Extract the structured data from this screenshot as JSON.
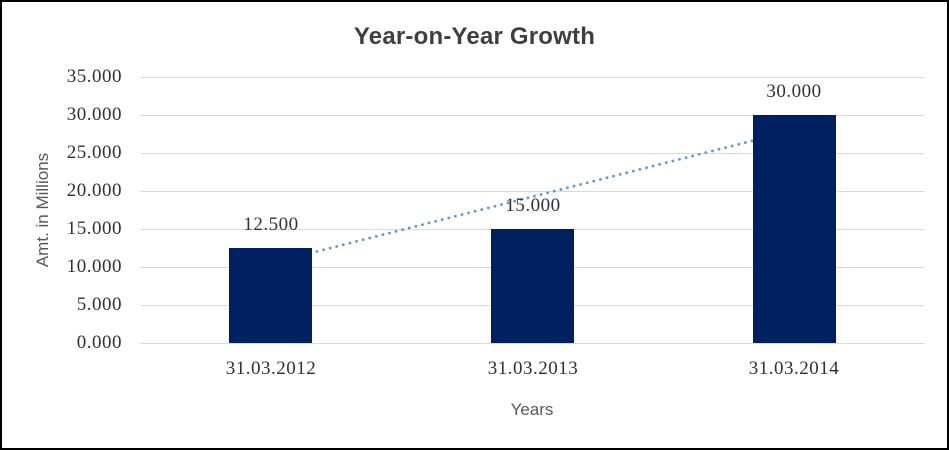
{
  "chart_data": {
    "type": "bar",
    "title": "Year-on-Year Growth",
    "xlabel": "Years",
    "ylabel": "Amt. in Millions",
    "categories": [
      "31.03.2012",
      "31.03.2013",
      "31.03.2014"
    ],
    "values": [
      12.5,
      15,
      30
    ],
    "data_labels": [
      "12.500",
      "15.000",
      "30.000"
    ],
    "ylim": [
      0,
      35
    ],
    "ytick_step": 5,
    "ytick_labels": [
      "0.000",
      "5.000",
      "10.000",
      "15.000",
      "20.000",
      "25.000",
      "30.000",
      "35.000"
    ],
    "grid": true,
    "legend": false,
    "trendline": {
      "style": "dotted",
      "color": "#5B9BD5",
      "points": [
        {
          "category_index": 0,
          "value": 10.5
        },
        {
          "category_index": 2,
          "value": 28.0
        }
      ]
    },
    "colors": {
      "bar": "#002060",
      "gridline": "#D9D9D9",
      "title_text": "#3F3F3F",
      "tick_text": "#303030",
      "axis_title_text": "#595959",
      "background": "#FFFFFF",
      "border": "#000000"
    }
  }
}
